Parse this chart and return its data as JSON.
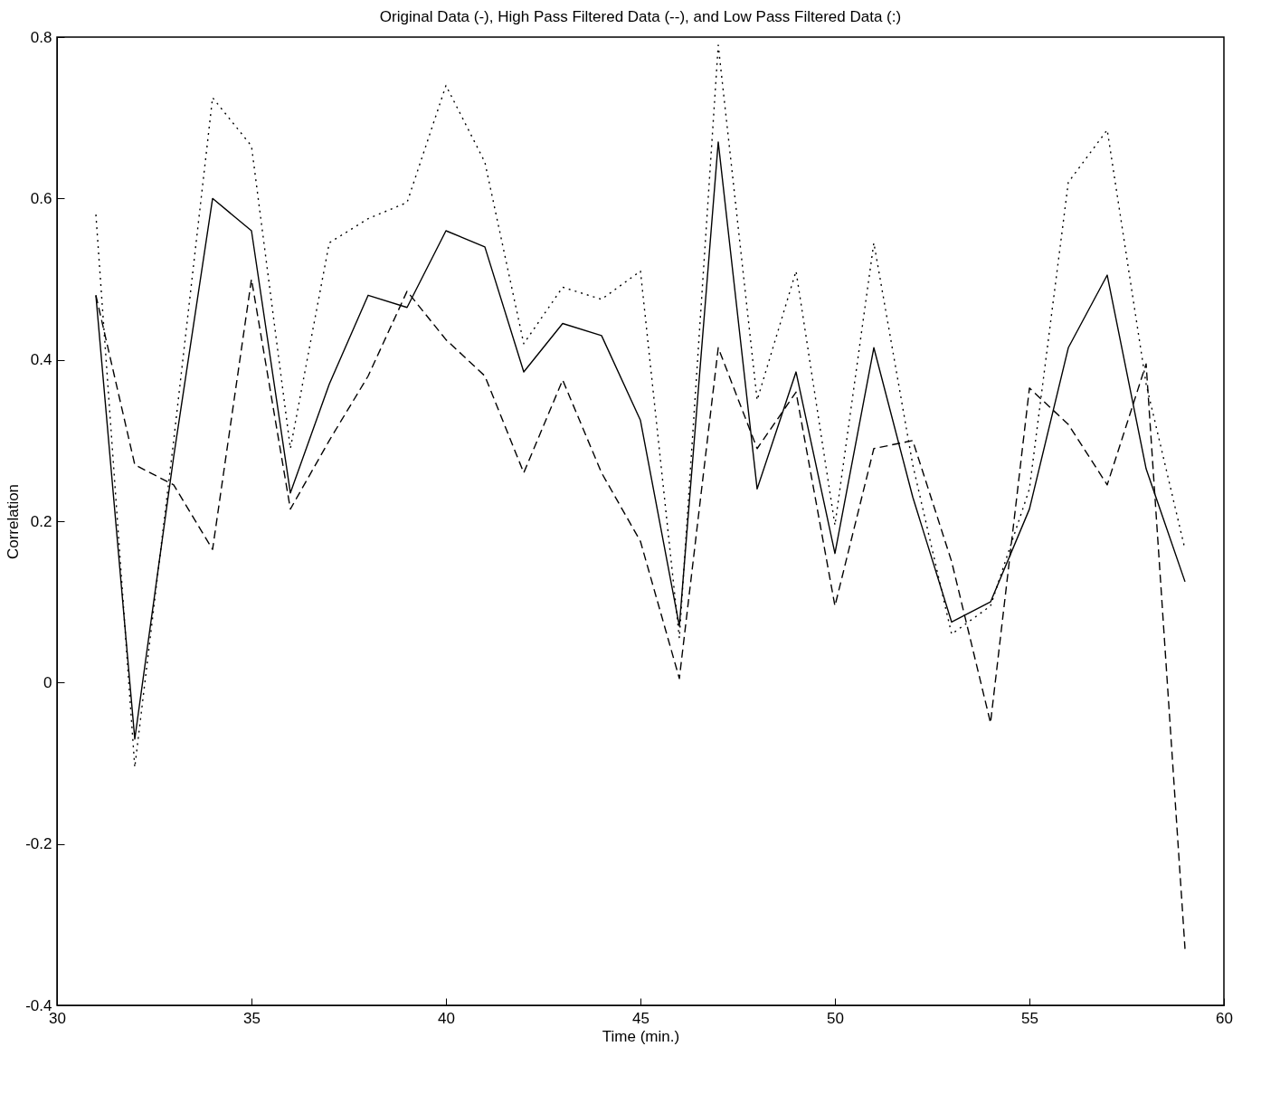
{
  "chart_data": {
    "type": "line",
    "title": "Original Data (-), High Pass Filtered Data (--), and Low Pass Filtered Data (:)",
    "xlabel": "Time (min.)",
    "ylabel": "Correlation",
    "x": [
      31,
      32,
      33,
      34,
      35,
      36,
      37,
      38,
      39,
      40,
      41,
      42,
      43,
      44,
      45,
      46,
      47,
      48,
      49,
      50,
      51,
      52,
      53,
      54,
      55,
      56,
      57,
      58,
      59
    ],
    "series": [
      {
        "color": "#000000",
        "line_style": "solid",
        "values": [
          0.48,
          -0.07,
          0.28,
          0.6,
          0.56,
          0.235,
          0.37,
          0.48,
          0.465,
          0.56,
          0.54,
          0.385,
          0.445,
          0.43,
          0.325,
          0.07,
          0.67,
          0.24,
          0.385,
          0.16,
          0.415,
          0.23,
          0.075,
          0.1,
          0.215,
          0.415,
          0.505,
          0.265,
          0.125
        ]
      },
      {
        "color": "#000000",
        "line_style": "dashed",
        "values": [
          0.48,
          0.27,
          0.245,
          0.165,
          0.5,
          0.215,
          0.3,
          0.38,
          0.485,
          0.425,
          0.38,
          0.26,
          0.375,
          0.26,
          0.175,
          0.005,
          0.415,
          0.29,
          0.36,
          0.095,
          0.29,
          0.3,
          0.15,
          -0.05,
          0.365,
          0.32,
          0.245,
          0.395,
          -0.33
        ]
      },
      {
        "color": "#000000",
        "line_style": "dotted",
        "values": [
          0.58,
          -0.105,
          0.3,
          0.725,
          0.665,
          0.29,
          0.545,
          0.575,
          0.595,
          0.74,
          0.645,
          0.42,
          0.49,
          0.475,
          0.51,
          0.055,
          0.79,
          0.35,
          0.51,
          0.195,
          0.545,
          0.27,
          0.06,
          0.095,
          0.24,
          0.62,
          0.685,
          0.37,
          0.165
        ]
      }
    ],
    "xlim": [
      30,
      60
    ],
    "xticks": [
      30,
      35,
      40,
      45,
      50,
      55,
      60
    ],
    "ylim": [
      -0.4,
      0.8
    ],
    "yticks": [
      -0.4,
      -0.2,
      0,
      0.2,
      0.4,
      0.6,
      0.8
    ],
    "grid": false,
    "marker": "none"
  }
}
